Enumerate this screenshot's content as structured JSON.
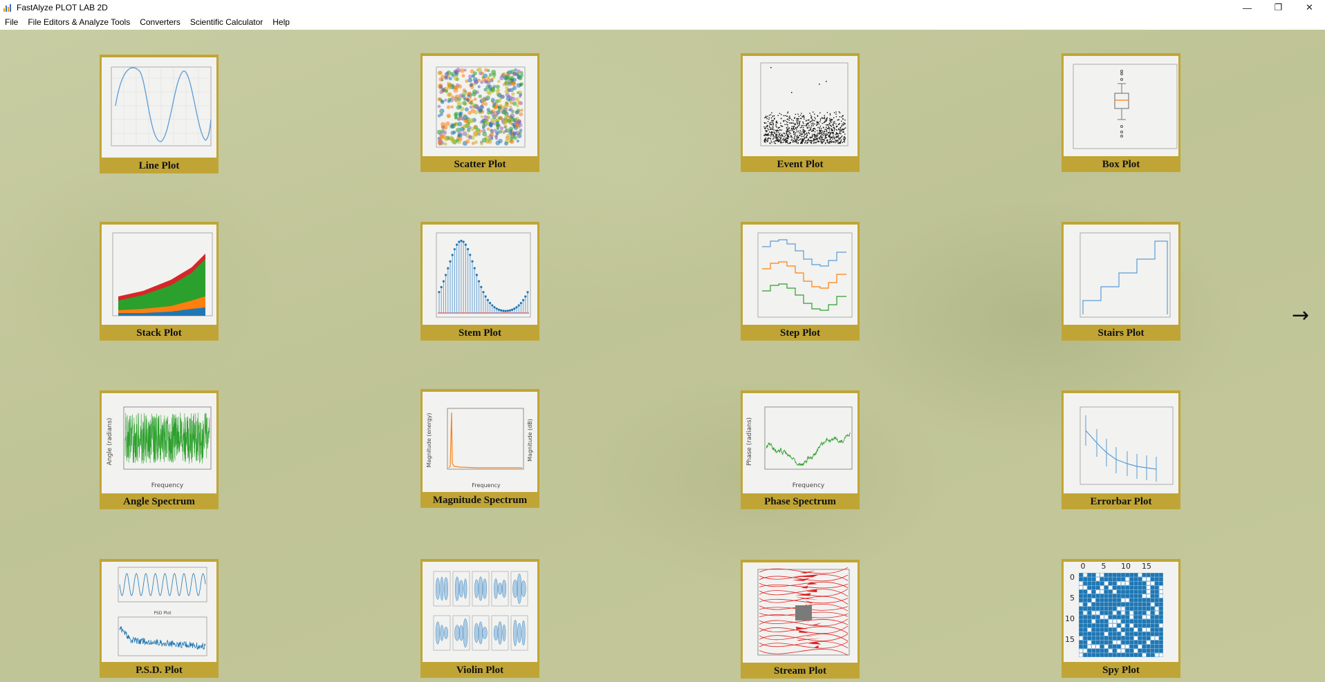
{
  "window": {
    "title": "FastAlyze PLOT LAB 2D",
    "minimize_glyph": "—",
    "restore_glyph": "❐",
    "close_glyph": "✕"
  },
  "menu": [
    "File",
    "File Editors & Analyze Tools",
    "Converters",
    "Scientific Calculator",
    "Help"
  ],
  "tiles": [
    {
      "label": "Line Plot",
      "icon": "line-plot-thumbnail"
    },
    {
      "label": "Scatter Plot",
      "icon": "scatter-plot-thumbnail"
    },
    {
      "label": "Event Plot",
      "icon": "event-plot-thumbnail"
    },
    {
      "label": "Box Plot",
      "icon": "box-plot-thumbnail"
    },
    {
      "label": "Stack Plot",
      "icon": "stack-plot-thumbnail"
    },
    {
      "label": "Stem Plot",
      "icon": "stem-plot-thumbnail"
    },
    {
      "label": "Step Plot",
      "icon": "step-plot-thumbnail"
    },
    {
      "label": "Stairs Plot",
      "icon": "stairs-plot-thumbnail"
    },
    {
      "label": "Angle Spectrum",
      "icon": "angle-spectrum-thumbnail"
    },
    {
      "label": "Magnitude Spectrum",
      "icon": "magnitude-spectrum-thumbnail"
    },
    {
      "label": "Phase Spectrum",
      "icon": "phase-spectrum-thumbnail"
    },
    {
      "label": "Errorbar Plot",
      "icon": "errorbar-plot-thumbnail"
    },
    {
      "label": "P.S.D. Plot",
      "icon": "psd-plot-thumbnail"
    },
    {
      "label": "Violin Plot",
      "icon": "violin-plot-thumbnail"
    },
    {
      "label": "Stream Plot",
      "icon": "stream-plot-thumbnail"
    },
    {
      "label": "Spy Plot",
      "icon": "spy-plot-thumbnail"
    }
  ],
  "thumb_text": {
    "angle_ylabel": "Angle (radians)",
    "magnitude_ylabel": "Magnitude (energy)",
    "magnitude_y2label": "Magnitude (dB)",
    "phase_ylabel": "Phase (radians)",
    "frequency_xlabel": "Frequency",
    "psd_title": "PSD Plot",
    "spy_xticks": [
      "0",
      "5",
      "10",
      "15"
    ],
    "spy_yticks": [
      "0",
      "5",
      "10",
      "15"
    ]
  },
  "next_arrow": "→",
  "colors": {
    "tile_frame": "#c0a536",
    "background": "#c3c89a",
    "plot_blue": "#1f77b4",
    "plot_orange": "#ff7f0e",
    "plot_green": "#2ca02c",
    "plot_red": "#d62728"
  }
}
